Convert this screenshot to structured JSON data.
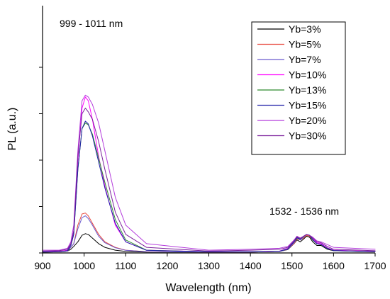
{
  "chart_data": {
    "type": "line",
    "title": "",
    "xlabel": "Wavelength (nm)",
    "ylabel": "PL (a.u.)",
    "xlim": [
      900,
      1700
    ],
    "ylim": [
      0,
      1.0
    ],
    "x_ticks": [
      900,
      1000,
      1100,
      1200,
      1300,
      1400,
      1500,
      1600,
      1700
    ],
    "y_minor_ticks": [
      0,
      0.25,
      0.5,
      0.75,
      1.0
    ],
    "grid": false,
    "legend_placement": "top-right",
    "annotations": [
      "999 - 1011 nm",
      "1532 - 1536 nm"
    ],
    "series": [
      {
        "name": "Yb=3%",
        "color": "#000000",
        "x": [
          900,
          940,
          960,
          968,
          975,
          985,
          995,
          1003,
          1010,
          1020,
          1035,
          1050,
          1075,
          1100,
          1150,
          1300,
          1400,
          1470,
          1490,
          1505,
          1512,
          1520,
          1528,
          1535,
          1542,
          1550,
          1560,
          1570,
          1585,
          1600,
          1700
        ],
        "y": [
          0.005,
          0.006,
          0.01,
          0.02,
          0.035,
          0.06,
          0.095,
          0.104,
          0.1,
          0.08,
          0.05,
          0.03,
          0.015,
          0.008,
          0.005,
          0.005,
          0.005,
          0.008,
          0.018,
          0.05,
          0.07,
          0.06,
          0.075,
          0.09,
          0.085,
          0.06,
          0.04,
          0.04,
          0.02,
          0.012,
          0.006
        ]
      },
      {
        "name": "Yb=5%",
        "color": "#e8463c",
        "x": [
          900,
          940,
          960,
          968,
          975,
          985,
          995,
          1003,
          1010,
          1020,
          1035,
          1050,
          1075,
          1100,
          1150,
          1300,
          1400,
          1470,
          1490,
          1505,
          1512,
          1520,
          1528,
          1535,
          1542,
          1550,
          1560,
          1570,
          1585,
          1600,
          1700
        ],
        "y": [
          0.005,
          0.006,
          0.01,
          0.03,
          0.05,
          0.15,
          0.21,
          0.215,
          0.2,
          0.16,
          0.1,
          0.06,
          0.03,
          0.015,
          0.007,
          0.005,
          0.005,
          0.008,
          0.02,
          0.05,
          0.075,
          0.07,
          0.08,
          0.095,
          0.09,
          0.07,
          0.05,
          0.045,
          0.025,
          0.013,
          0.006
        ]
      },
      {
        "name": "Yb=7%",
        "color": "#6a5acd",
        "x": [
          900,
          940,
          960,
          968,
          975,
          985,
          995,
          1003,
          1010,
          1020,
          1035,
          1050,
          1075,
          1100,
          1150,
          1300,
          1400,
          1470,
          1490,
          1505,
          1512,
          1520,
          1528,
          1535,
          1542,
          1550,
          1560,
          1570,
          1585,
          1600,
          1700
        ],
        "y": [
          0.005,
          0.006,
          0.01,
          0.03,
          0.05,
          0.13,
          0.19,
          0.2,
          0.185,
          0.15,
          0.09,
          0.055,
          0.028,
          0.014,
          0.007,
          0.005,
          0.005,
          0.008,
          0.02,
          0.055,
          0.08,
          0.07,
          0.085,
          0.1,
          0.095,
          0.07,
          0.05,
          0.045,
          0.025,
          0.013,
          0.006
        ]
      },
      {
        "name": "Yb=10%",
        "color": "#ff00ff",
        "x": [
          900,
          940,
          960,
          968,
          975,
          985,
          995,
          1003,
          1010,
          1020,
          1035,
          1050,
          1075,
          1100,
          1150,
          1300,
          1400,
          1470,
          1490,
          1505,
          1512,
          1520,
          1528,
          1535,
          1542,
          1550,
          1560,
          1570,
          1585,
          1600,
          1700
        ],
        "y": [
          0.006,
          0.008,
          0.015,
          0.05,
          0.12,
          0.5,
          0.78,
          0.84,
          0.82,
          0.72,
          0.52,
          0.36,
          0.15,
          0.06,
          0.015,
          0.007,
          0.007,
          0.01,
          0.025,
          0.065,
          0.085,
          0.08,
          0.09,
          0.1,
          0.095,
          0.075,
          0.055,
          0.05,
          0.028,
          0.015,
          0.008
        ]
      },
      {
        "name": "Yb=13%",
        "color": "#2e8b2e",
        "x": [
          900,
          940,
          960,
          968,
          975,
          985,
          995,
          1003,
          1010,
          1020,
          1035,
          1050,
          1075,
          1100,
          1150,
          1300,
          1400,
          1470,
          1490,
          1505,
          1512,
          1520,
          1528,
          1535,
          1542,
          1550,
          1560,
          1570,
          1585,
          1600,
          1700
        ],
        "y": [
          0.005,
          0.007,
          0.012,
          0.04,
          0.1,
          0.45,
          0.67,
          0.7,
          0.69,
          0.64,
          0.51,
          0.38,
          0.18,
          0.07,
          0.015,
          0.006,
          0.006,
          0.009,
          0.022,
          0.06,
          0.08,
          0.075,
          0.088,
          0.1,
          0.095,
          0.07,
          0.05,
          0.045,
          0.025,
          0.013,
          0.007
        ]
      },
      {
        "name": "Yb=15%",
        "color": "#1f1fa8",
        "x": [
          900,
          940,
          960,
          968,
          975,
          985,
          995,
          1003,
          1010,
          1020,
          1035,
          1050,
          1075,
          1100,
          1150,
          1300,
          1400,
          1470,
          1490,
          1505,
          1512,
          1520,
          1528,
          1535,
          1542,
          1550,
          1560,
          1570,
          1585,
          1600,
          1700
        ],
        "y": [
          0.005,
          0.007,
          0.012,
          0.04,
          0.1,
          0.45,
          0.67,
          0.71,
          0.695,
          0.63,
          0.49,
          0.35,
          0.16,
          0.06,
          0.014,
          0.006,
          0.006,
          0.009,
          0.022,
          0.06,
          0.082,
          0.075,
          0.09,
          0.1,
          0.096,
          0.072,
          0.05,
          0.046,
          0.025,
          0.013,
          0.007
        ]
      },
      {
        "name": "Yb=20%",
        "color": "#b43cdc",
        "x": [
          900,
          940,
          960,
          968,
          975,
          985,
          995,
          1003,
          1010,
          1020,
          1035,
          1050,
          1075,
          1100,
          1150,
          1300,
          1400,
          1470,
          1490,
          1505,
          1512,
          1520,
          1528,
          1535,
          1542,
          1550,
          1560,
          1570,
          1585,
          1600,
          1700
        ],
        "y": [
          0.015,
          0.015,
          0.025,
          0.06,
          0.15,
          0.55,
          0.82,
          0.85,
          0.84,
          0.8,
          0.7,
          0.55,
          0.3,
          0.15,
          0.05,
          0.015,
          0.02,
          0.025,
          0.035,
          0.07,
          0.09,
          0.08,
          0.09,
          0.1,
          0.095,
          0.085,
          0.065,
          0.06,
          0.045,
          0.03,
          0.02
        ]
      },
      {
        "name": "Yb=30%",
        "color": "#7b1f9c",
        "x": [
          900,
          940,
          960,
          968,
          975,
          985,
          995,
          1003,
          1010,
          1020,
          1035,
          1050,
          1075,
          1100,
          1150,
          1300,
          1400,
          1470,
          1490,
          1505,
          1512,
          1520,
          1528,
          1535,
          1542,
          1550,
          1560,
          1570,
          1585,
          1600,
          1700
        ],
        "y": [
          0.01,
          0.012,
          0.02,
          0.05,
          0.12,
          0.52,
          0.75,
          0.78,
          0.76,
          0.72,
          0.6,
          0.45,
          0.22,
          0.1,
          0.03,
          0.01,
          0.015,
          0.02,
          0.03,
          0.065,
          0.088,
          0.078,
          0.09,
          0.1,
          0.095,
          0.08,
          0.06,
          0.055,
          0.035,
          0.02,
          0.012
        ]
      }
    ]
  }
}
